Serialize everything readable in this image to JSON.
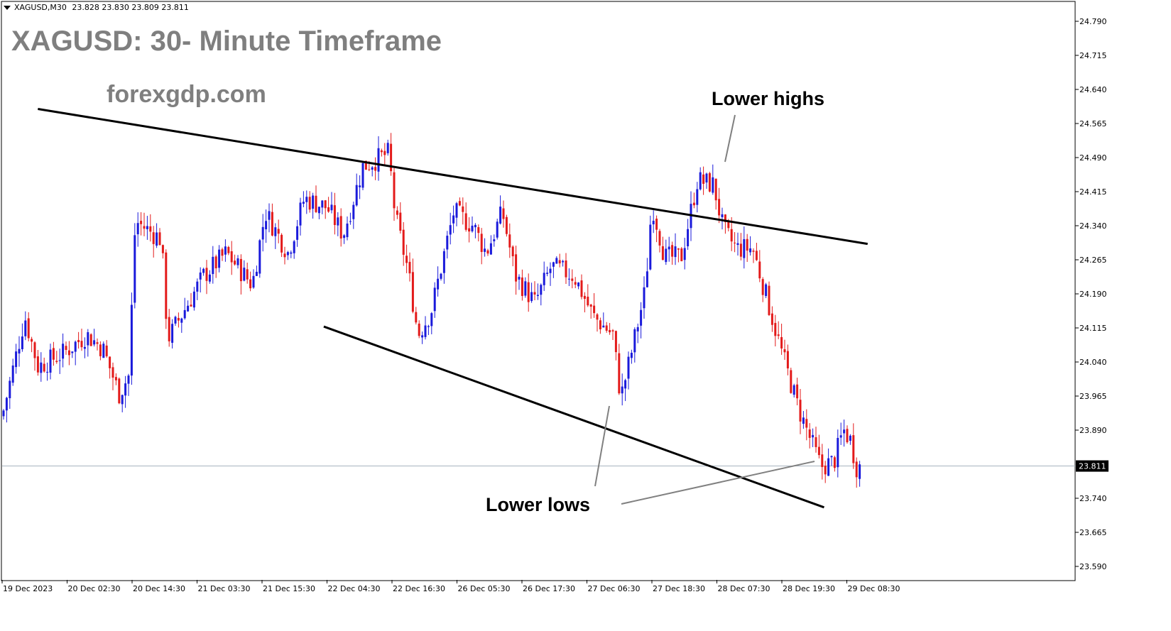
{
  "header": {
    "symbol": "XAGUSD,M30",
    "quotes": "23.828 23.830 23.809 23.811"
  },
  "overlay": {
    "title": "XAGUSD: 30- Minute Timeframe",
    "website": "forexgdp.com",
    "annotation_highs": "Lower highs",
    "annotation_lows": "Lower lows"
  },
  "colors": {
    "bullish": "#1a1adb",
    "bearish": "#e31a1a",
    "trendline": "#000000",
    "pointer": "#808080",
    "price_line": "#a8b4c0",
    "current_price_bg": "#000000",
    "current_price_fg": "#ffffff",
    "overlay_text": "#7f7f7f"
  },
  "chart_data": {
    "type": "candlestick",
    "symbol": "XAGUSD",
    "timeframe": "M30",
    "y_ticks": [
      "24.790",
      "24.715",
      "24.640",
      "24.565",
      "24.490",
      "24.415",
      "24.340",
      "24.265",
      "24.190",
      "24.115",
      "24.040",
      "23.965",
      "23.890",
      "23.811",
      "23.740",
      "23.665",
      "23.590"
    ],
    "x_ticks": [
      "19 Dec 2023",
      "20 Dec 02:30",
      "20 Dec 14:30",
      "21 Dec 03:30",
      "21 Dec 15:30",
      "22 Dec 04:30",
      "22 Dec 16:30",
      "26 Dec 05:30",
      "26 Dec 17:30",
      "27 Dec 06:30",
      "27 Dec 18:30",
      "28 Dec 07:30",
      "28 Dec 19:30",
      "29 Dec 08:30"
    ],
    "ylim": [
      23.57,
      24.8
    ],
    "current_price": 23.811,
    "current_price_label": "23.811",
    "trendlines": [
      {
        "name": "upper",
        "x0_index": 0.55,
        "y0": 24.597,
        "x1_index": 13.32,
        "y1": 24.3
      },
      {
        "name": "lower",
        "x0_index": 4.95,
        "y0": 24.118,
        "x1_index": 12.65,
        "y1": 23.72
      }
    ],
    "anchors": [
      {
        "x_index": 0.0,
        "close": 23.92
      },
      {
        "x_index": 0.35,
        "close": 24.14
      },
      {
        "x_index": 0.55,
        "close": 24.03
      },
      {
        "x_index": 0.95,
        "close": 24.06
      },
      {
        "x_index": 1.3,
        "close": 24.1
      },
      {
        "x_index": 1.55,
        "close": 24.07
      },
      {
        "x_index": 1.8,
        "close": 23.97
      },
      {
        "x_index": 1.95,
        "close": 24.01
      },
      {
        "x_index": 2.05,
        "close": 24.35
      },
      {
        "x_index": 2.45,
        "close": 24.31
      },
      {
        "x_index": 2.55,
        "close": 24.09
      },
      {
        "x_index": 3.1,
        "close": 24.23
      },
      {
        "x_index": 3.45,
        "close": 24.28
      },
      {
        "x_index": 3.85,
        "close": 24.21
      },
      {
        "x_index": 4.05,
        "close": 24.37
      },
      {
        "x_index": 4.4,
        "close": 24.28
      },
      {
        "x_index": 4.65,
        "close": 24.4
      },
      {
        "x_index": 5.0,
        "close": 24.38
      },
      {
        "x_index": 5.25,
        "close": 24.32
      },
      {
        "x_index": 5.55,
        "close": 24.47
      },
      {
        "x_index": 5.95,
        "close": 24.5
      },
      {
        "x_index": 6.05,
        "close": 24.36
      },
      {
        "x_index": 6.25,
        "close": 24.24
      },
      {
        "x_index": 6.4,
        "close": 24.1
      },
      {
        "x_index": 6.6,
        "close": 24.15
      },
      {
        "x_index": 6.95,
        "close": 24.37
      },
      {
        "x_index": 7.25,
        "close": 24.34
      },
      {
        "x_index": 7.45,
        "close": 24.28
      },
      {
        "x_index": 7.7,
        "close": 24.37
      },
      {
        "x_index": 7.9,
        "close": 24.23
      },
      {
        "x_index": 8.2,
        "close": 24.17
      },
      {
        "x_index": 8.45,
        "close": 24.25
      },
      {
        "x_index": 8.8,
        "close": 24.23
      },
      {
        "x_index": 9.1,
        "close": 24.14
      },
      {
        "x_index": 9.4,
        "close": 24.1
      },
      {
        "x_index": 9.52,
        "close": 23.96
      },
      {
        "x_index": 9.7,
        "close": 24.07
      },
      {
        "x_index": 9.9,
        "close": 24.2
      },
      {
        "x_index": 10.0,
        "close": 24.39
      },
      {
        "x_index": 10.2,
        "close": 24.27
      },
      {
        "x_index": 10.45,
        "close": 24.27
      },
      {
        "x_index": 10.7,
        "close": 24.44
      },
      {
        "x_index": 10.95,
        "close": 24.43
      },
      {
        "x_index": 11.1,
        "close": 24.33
      },
      {
        "x_index": 11.3,
        "close": 24.29
      },
      {
        "x_index": 11.55,
        "close": 24.29
      },
      {
        "x_index": 11.75,
        "close": 24.19
      },
      {
        "x_index": 12.0,
        "close": 24.06
      },
      {
        "x_index": 12.25,
        "close": 23.94
      },
      {
        "x_index": 12.6,
        "close": 23.81
      },
      {
        "x_index": 12.8,
        "close": 23.82
      },
      {
        "x_index": 12.95,
        "close": 23.89
      },
      {
        "x_index": 13.05,
        "close": 23.87
      },
      {
        "x_index": 13.15,
        "close": 23.81
      }
    ]
  }
}
